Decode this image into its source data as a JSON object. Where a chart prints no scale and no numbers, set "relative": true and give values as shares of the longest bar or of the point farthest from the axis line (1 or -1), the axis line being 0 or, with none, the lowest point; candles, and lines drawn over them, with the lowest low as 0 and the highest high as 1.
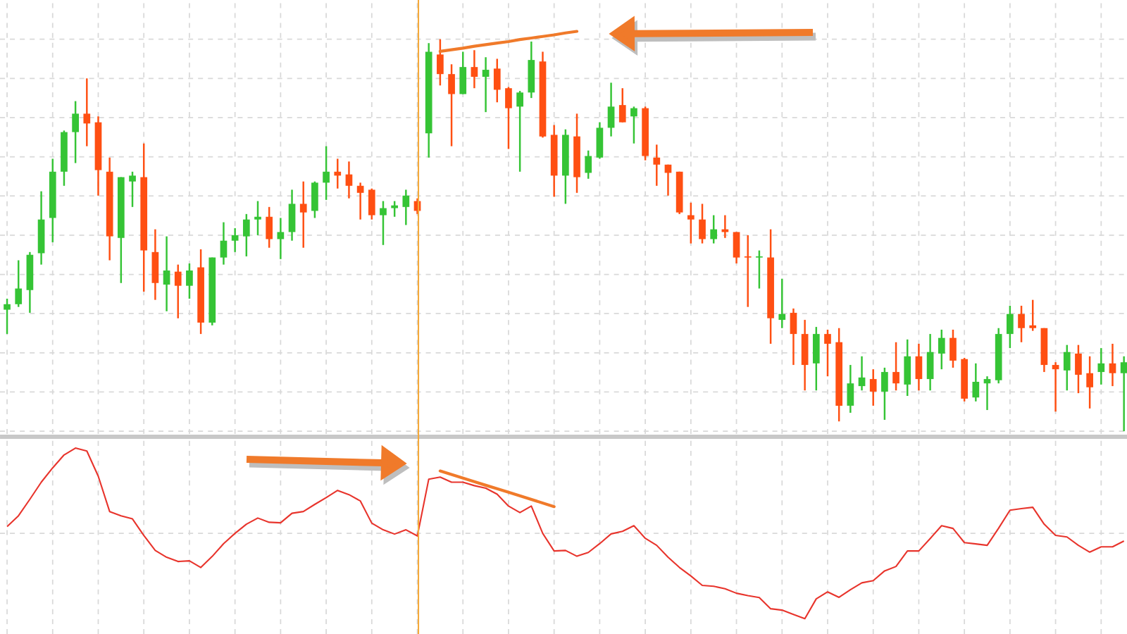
{
  "chart_data": [
    {
      "type": "candlestick",
      "relative": true,
      "grid": true,
      "series": [
        {
          "type": "line",
          "color": "#f07a2a",
          "values": [
            null,
            null,
            null,
            null,
            null,
            null,
            null,
            null,
            null,
            null,
            null,
            null,
            null,
            null,
            null,
            null,
            null,
            null,
            null,
            null,
            null,
            null,
            null,
            null,
            null,
            null,
            null,
            null,
            null,
            null,
            null,
            null,
            null,
            null,
            null,
            null,
            null,
            null,
            0.969,
            0.973,
            0.977,
            0.982,
            0.986,
            0.99,
            0.994,
            0.999,
            1.003,
            1.007,
            1.011,
            1.016,
            1.02,
            null,
            null,
            null,
            null,
            null,
            null,
            null,
            null,
            null,
            null,
            null,
            null,
            null,
            null,
            null,
            null,
            null,
            null,
            null,
            null,
            null,
            null,
            null,
            null,
            null,
            null,
            null,
            null,
            null,
            null,
            null,
            null,
            null,
            null,
            null,
            null,
            null,
            null,
            null,
            null,
            null,
            null,
            null,
            null,
            null,
            null,
            null,
            null
          ]
        }
      ],
      "categories": [
        null,
        null,
        null,
        null,
        null,
        null,
        null,
        null,
        null,
        null,
        null,
        null,
        null,
        null,
        null,
        null,
        null,
        null,
        null,
        null,
        null,
        null,
        null,
        null,
        null,
        null,
        null,
        null,
        null,
        null,
        null,
        null,
        null,
        null,
        null,
        null,
        null,
        null,
        null,
        null,
        null,
        null,
        null,
        null,
        null,
        null,
        null,
        null,
        null,
        null,
        null,
        null,
        null,
        null,
        null,
        null,
        null,
        null,
        null,
        null,
        null,
        null,
        null,
        null,
        null,
        null,
        null,
        null,
        null,
        null,
        null,
        null,
        null,
        null,
        null,
        null,
        null,
        null,
        null,
        null,
        null,
        null,
        null,
        null,
        null,
        null,
        null,
        null,
        null,
        null,
        null,
        null,
        null,
        null,
        null,
        null,
        null,
        null,
        null
      ],
      "ohlc": [
        [
          0.31,
          0.338,
          0.248,
          0.324
        ],
        [
          0.324,
          0.436,
          0.317,
          0.364
        ],
        [
          0.36,
          0.457,
          0.302,
          0.45
        ],
        [
          0.454,
          0.612,
          0.425,
          0.54
        ],
        [
          0.544,
          0.695,
          0.482,
          0.662
        ],
        [
          0.662,
          0.767,
          0.626,
          0.763
        ],
        [
          0.763,
          0.842,
          0.684,
          0.81
        ],
        [
          0.81,
          0.9,
          0.727,
          0.785
        ],
        [
          0.788,
          0.803,
          0.601,
          0.666
        ],
        [
          0.662,
          0.698,
          0.436,
          0.497
        ],
        [
          0.493,
          0.648,
          0.378,
          0.648
        ],
        [
          0.637,
          0.662,
          0.572,
          0.652
        ],
        [
          0.648,
          0.734,
          0.356,
          0.461
        ],
        [
          0.457,
          0.515,
          0.335,
          0.378
        ],
        [
          0.374,
          0.497,
          0.306,
          0.41
        ],
        [
          0.407,
          0.425,
          0.288,
          0.371
        ],
        [
          0.371,
          0.428,
          0.338,
          0.41
        ],
        [
          0.418,
          0.464,
          0.248,
          0.277
        ],
        [
          0.277,
          0.443,
          0.27,
          0.443
        ],
        [
          0.443,
          0.533,
          0.425,
          0.486
        ],
        [
          0.486,
          0.518,
          0.457,
          0.5
        ],
        [
          0.497,
          0.554,
          0.446,
          0.54
        ],
        [
          0.54,
          0.587,
          0.5,
          0.547
        ],
        [
          0.547,
          0.572,
          0.468,
          0.49
        ],
        [
          0.49,
          0.544,
          0.439,
          0.508
        ],
        [
          0.508,
          0.616,
          0.486,
          0.58
        ],
        [
          0.58,
          0.637,
          0.468,
          0.558
        ],
        [
          0.562,
          0.637,
          0.544,
          0.634
        ],
        [
          0.634,
          0.727,
          0.59,
          0.662
        ],
        [
          0.662,
          0.695,
          0.619,
          0.652
        ],
        [
          0.655,
          0.688,
          0.594,
          0.626
        ],
        [
          0.626,
          0.634,
          0.54,
          0.608
        ],
        [
          0.616,
          0.619,
          0.54,
          0.551
        ],
        [
          0.551,
          0.587,
          0.475,
          0.569
        ],
        [
          0.569,
          0.587,
          0.547,
          0.576
        ],
        [
          0.572,
          0.616,
          0.526,
          0.601
        ],
        [
          0.587,
          0.594,
          0.554,
          0.562
        ],
        [
          0.76,
          0.99,
          0.698,
          0.968
        ],
        [
          0.961,
          1,
          0.882,
          0.911
        ],
        [
          0.911,
          0.936,
          0.727,
          0.86
        ],
        [
          0.86,
          0.968,
          0.86,
          0.929
        ],
        [
          0.929,
          0.972,
          0.875,
          0.904
        ],
        [
          0.904,
          0.954,
          0.814,
          0.922
        ],
        [
          0.925,
          0.95,
          0.839,
          0.871
        ],
        [
          0.875,
          0.878,
          0.72,
          0.824
        ],
        [
          0.828,
          0.868,
          0.662,
          0.864
        ],
        [
          0.864,
          0.994,
          0.85,
          0.947
        ],
        [
          0.943,
          0.968,
          0.749,
          0.752
        ],
        [
          0.756,
          0.781,
          0.598,
          0.652
        ],
        [
          0.652,
          0.77,
          0.58,
          0.756
        ],
        [
          0.752,
          0.81,
          0.608,
          0.648
        ],
        [
          0.659,
          0.716,
          0.644,
          0.702
        ],
        [
          0.698,
          0.788,
          0.695,
          0.774
        ],
        [
          0.774,
          0.889,
          0.752,
          0.828
        ],
        [
          0.832,
          0.875,
          0.788,
          0.788
        ],
        [
          0.803,
          0.828,
          0.734,
          0.824
        ],
        [
          0.824,
          0.828,
          0.691,
          0.702
        ],
        [
          0.698,
          0.731,
          0.626,
          0.68
        ],
        [
          0.68,
          0.68,
          0.601,
          0.659
        ],
        [
          0.662,
          0.662,
          0.554,
          0.558
        ],
        [
          0.551,
          0.583,
          0.479,
          0.54
        ],
        [
          0.54,
          0.58,
          0.479,
          0.49
        ],
        [
          0.49,
          0.551,
          0.479,
          0.515
        ],
        [
          0.515,
          0.551,
          0.493,
          0.508
        ],
        [
          0.508,
          0.508,
          0.428,
          0.443
        ],
        [
          0.446,
          0.5,
          0.317,
          0.443
        ],
        [
          0.443,
          0.461,
          0.364,
          0.446
        ],
        [
          0.443,
          0.515,
          0.223,
          0.288
        ],
        [
          0.284,
          0.389,
          0.263,
          0.299
        ],
        [
          0.302,
          0.313,
          0.169,
          0.248
        ],
        [
          0.248,
          0.284,
          0.104,
          0.169
        ],
        [
          0.173,
          0.266,
          0.104,
          0.248
        ],
        [
          0.248,
          0.259,
          0.14,
          0.223
        ],
        [
          0.227,
          0.263,
          0.025,
          0.065
        ],
        [
          0.065,
          0.169,
          0.047,
          0.122
        ],
        [
          0.115,
          0.191,
          0.104,
          0.137
        ],
        [
          0.133,
          0.158,
          0.065,
          0.101
        ],
        [
          0.101,
          0.162,
          0.029,
          0.151
        ],
        [
          0.151,
          0.227,
          0.104,
          0.122
        ],
        [
          0.119,
          0.234,
          0.09,
          0.191
        ],
        [
          0.191,
          0.223,
          0.104,
          0.133
        ],
        [
          0.133,
          0.248,
          0.104,
          0.202
        ],
        [
          0.198,
          0.259,
          0.158,
          0.238
        ],
        [
          0.238,
          0.259,
          0.162,
          0.18
        ],
        [
          0.184,
          0.187,
          0.076,
          0.083
        ],
        [
          0.086,
          0.173,
          0.076,
          0.126
        ],
        [
          0.122,
          0.14,
          0.054,
          0.133
        ],
        [
          0.13,
          0.263,
          0.122,
          0.248
        ],
        [
          0.248,
          0.32,
          0.212,
          0.299
        ],
        [
          0.299,
          0.32,
          0.227,
          0.263
        ],
        [
          0.27,
          0.335,
          0.256,
          0.263
        ],
        [
          0.263,
          0.263,
          0.151,
          0.169
        ],
        [
          0.169,
          0.176,
          0.05,
          0.158
        ],
        [
          0.155,
          0.22,
          0.104,
          0.202
        ],
        [
          0.198,
          0.22,
          0.097,
          0.144
        ],
        [
          0.148,
          0.191,
          0.058,
          0.112
        ],
        [
          0.151,
          0.212,
          0.119,
          0.173
        ],
        [
          0.173,
          0.223,
          0.115,
          0.148
        ],
        [
          0.148,
          0.191,
          0,
          0.176
        ]
      ],
      "colors": [
        "#35c435",
        "#35c435",
        "#35c435",
        "#35c435",
        "#35c435",
        "#35c435",
        "#35c435",
        "#ff4f12",
        "#ff4f12",
        "#ff4f12",
        "#35c435",
        "#35c435",
        "#ff4f12",
        "#ff4f12",
        "#35c435",
        "#ff4f12",
        "#35c435",
        "#ff4f12",
        "#35c435",
        "#35c435",
        "#35c435",
        "#35c435",
        "#35c435",
        "#ff4f12",
        "#35c435",
        "#35c435",
        "#ff4f12",
        "#35c435",
        "#35c435",
        "#ff4f12",
        "#ff4f12",
        "#ff4f12",
        "#ff4f12",
        "#35c435",
        "#35c435",
        "#35c435",
        "#ff4f12",
        "#35c435",
        "#ff4f12",
        "#ff4f12",
        "#35c435",
        "#ff4f12",
        "#35c435",
        "#ff4f12",
        "#ff4f12",
        "#35c435",
        "#35c435",
        "#ff4f12",
        "#ff4f12",
        "#35c435",
        "#ff4f12",
        "#35c435",
        "#35c435",
        "#35c435",
        "#ff4f12",
        "#35c435",
        "#ff4f12",
        "#ff4f12",
        "#ff4f12",
        "#ff4f12",
        "#ff4f12",
        "#ff4f12",
        "#35c435",
        "#ff4f12",
        "#ff4f12",
        "#ff4f12",
        "#35c435",
        "#ff4f12",
        "#35c435",
        "#ff4f12",
        "#ff4f12",
        "#35c435",
        "#ff4f12",
        "#ff4f12",
        "#35c435",
        "#35c435",
        "#ff4f12",
        "#35c435",
        "#ff4f12",
        "#35c435",
        "#ff4f12",
        "#35c435",
        "#35c435",
        "#ff4f12",
        "#ff4f12",
        "#35c435",
        "#35c435",
        "#35c435",
        "#35c435",
        "#ff4f12",
        "#ff4f12",
        "#ff4f12",
        "#ff4f12",
        "#35c435",
        "#ff4f12",
        "#ff4f12",
        "#35c435",
        "#ff4f12",
        "#35c435"
      ]
    },
    {
      "type": "line",
      "relative": true,
      "grid": true,
      "color": "#e8342c",
      "series": [
        {
          "type": "line",
          "color": "#f07a2a",
          "values": [
            null,
            null,
            null,
            null,
            null,
            null,
            null,
            null,
            null,
            null,
            null,
            null,
            null,
            null,
            null,
            null,
            null,
            null,
            null,
            null,
            null,
            null,
            null,
            null,
            null,
            null,
            null,
            null,
            null,
            null,
            null,
            null,
            null,
            null,
            null,
            null,
            null,
            null,
            0.866,
            0.845,
            0.824,
            0.803,
            0.782,
            0.762,
            0.741,
            0.72,
            0.699,
            0.678,
            0.657,
            null,
            null,
            null,
            null,
            null,
            null,
            null,
            null,
            null,
            null,
            null,
            null,
            null,
            null,
            null,
            null,
            null,
            null,
            null,
            null,
            null,
            null,
            null,
            null,
            null,
            null,
            null,
            null,
            null,
            null,
            null,
            null,
            null,
            null,
            null,
            null,
            null,
            null,
            null,
            null,
            null,
            null,
            null,
            null,
            null,
            null,
            null,
            null,
            null,
            null
          ]
        }
      ],
      "categories": [
        null,
        null,
        null,
        null,
        null,
        null,
        null,
        null,
        null,
        null,
        null,
        null,
        null,
        null,
        null,
        null,
        null,
        null,
        null,
        null,
        null,
        null,
        null,
        null,
        null,
        null,
        null,
        null,
        null,
        null,
        null,
        null,
        null,
        null,
        null,
        null,
        null,
        null,
        null,
        null,
        null,
        null,
        null,
        null,
        null,
        null,
        null,
        null,
        null,
        null,
        null,
        null,
        null,
        null,
        null,
        null,
        null,
        null,
        null,
        null,
        null,
        null,
        null,
        null,
        null,
        null,
        null,
        null,
        null,
        null,
        null,
        null,
        null,
        null,
        null,
        null,
        null,
        null,
        null,
        null,
        null,
        null,
        null,
        null,
        null,
        null,
        null,
        null,
        null,
        null,
        null,
        null,
        null,
        null,
        null,
        null,
        null,
        null,
        null
      ],
      "values": [
        0.54,
        0.603,
        0.7,
        0.8,
        0.884,
        0.96,
        1,
        0.983,
        0.835,
        0.628,
        0.603,
        0.585,
        0.488,
        0.4,
        0.36,
        0.335,
        0.339,
        0.3,
        0.365,
        0.44,
        0.5,
        0.554,
        0.59,
        0.565,
        0.562,
        0.618,
        0.628,
        0.67,
        0.71,
        0.752,
        0.727,
        0.69,
        0.56,
        0.521,
        0.496,
        0.521,
        0.485,
        0.818,
        0.83,
        0.8,
        0.8,
        0.78,
        0.765,
        0.73,
        0.66,
        0.622,
        0.66,
        0.5,
        0.397,
        0.4,
        0.366,
        0.388,
        0.44,
        0.497,
        0.512,
        0.545,
        0.471,
        0.43,
        0.36,
        0.3,
        0.25,
        0.195,
        0.19,
        0.175,
        0.149,
        0.135,
        0.124,
        0.058,
        0.05,
        0.025,
        0,
        0.116,
        0.157,
        0.125,
        0.17,
        0.21,
        0.223,
        0.28,
        0.306,
        0.397,
        0.397,
        0.47,
        0.545,
        0.529,
        0.446,
        0.438,
        0.43,
        0.53,
        0.636,
        0.645,
        0.653,
        0.554,
        0.488,
        0.479,
        0.43,
        0.39,
        0.421,
        0.421,
        0.455
      ]
    }
  ]
}
